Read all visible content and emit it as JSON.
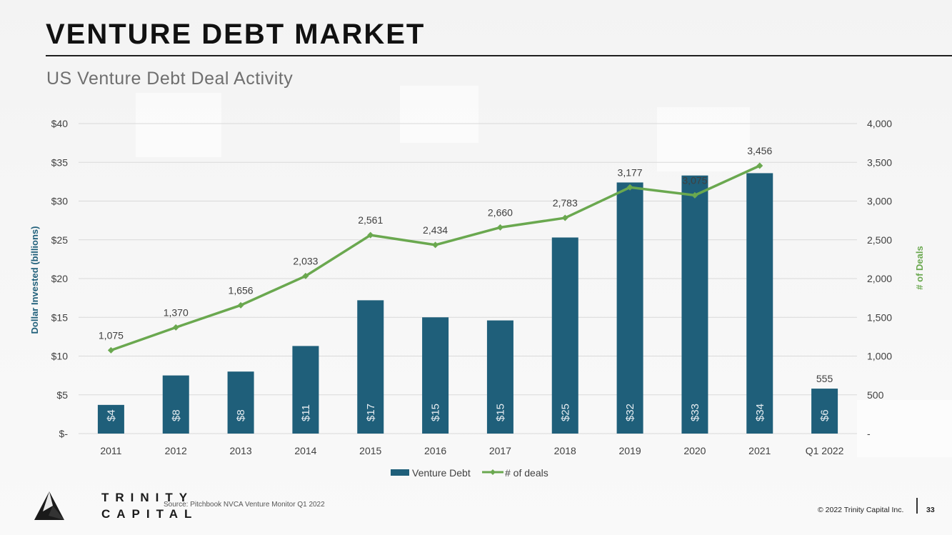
{
  "header": {
    "title": "VENTURE DEBT MARKET",
    "subtitle": "US Venture Debt Deal Activity"
  },
  "footer": {
    "logo_line1": "TRINITY",
    "logo_line2": "CAPITAL",
    "source": "Source: Pitchbook NVCA Venture Monitor Q1 2022",
    "copyright": "© 2022 Trinity Capital Inc.",
    "page_number": "33"
  },
  "colors": {
    "bar": "#1f5f7a",
    "line": "#6aa84f",
    "left_axis_title": "#1f5f7a",
    "right_axis_title": "#6aa84f"
  },
  "chart_data": {
    "type": "bar",
    "categories": [
      "2011",
      "2012",
      "2013",
      "2014",
      "2015",
      "2016",
      "2017",
      "2018",
      "2019",
      "2020",
      "2021",
      "Q1 2022"
    ],
    "series": [
      {
        "name": "Venture Debt",
        "type": "bar",
        "axis": "left",
        "values": [
          3.7,
          7.5,
          8.0,
          11.3,
          17.2,
          15.0,
          14.6,
          25.3,
          32.4,
          33.3,
          33.6,
          5.8
        ],
        "labels": [
          "$4",
          "$8",
          "$8",
          "$11",
          "$17",
          "$15",
          "$15",
          "$25",
          "$32",
          "$33",
          "$34",
          "$6"
        ]
      },
      {
        "name": "# of deals",
        "type": "line",
        "axis": "right",
        "values": [
          1075,
          1370,
          1656,
          2033,
          2561,
          2434,
          2660,
          2783,
          3177,
          3075,
          3456,
          555
        ],
        "labels": [
          "1,075",
          "1,370",
          "1,656",
          "2,033",
          "2,561",
          "2,434",
          "2,660",
          "2,783",
          "3,177",
          "3,075",
          "3,456",
          "555"
        ],
        "line_points": 11
      }
    ],
    "ylabel": "Dollar Invested (billions)",
    "y2label": "# of Deals",
    "ylim": [
      0,
      40
    ],
    "y2lim": [
      0,
      4000
    ],
    "yticks": [
      0,
      5,
      10,
      15,
      20,
      25,
      30,
      35,
      40
    ],
    "ytick_labels": [
      "$-",
      "$5",
      "$10",
      "$15",
      "$20",
      "$25",
      "$30",
      "$35",
      "$40"
    ],
    "y2ticks": [
      0,
      500,
      1000,
      1500,
      2000,
      2500,
      3000,
      3500,
      4000
    ],
    "y2tick_labels": [
      "-",
      "500",
      "1,000",
      "1,500",
      "2,000",
      "2,500",
      "3,000",
      "3,500",
      "4,000"
    ],
    "grid": true,
    "legend": "bottom"
  }
}
